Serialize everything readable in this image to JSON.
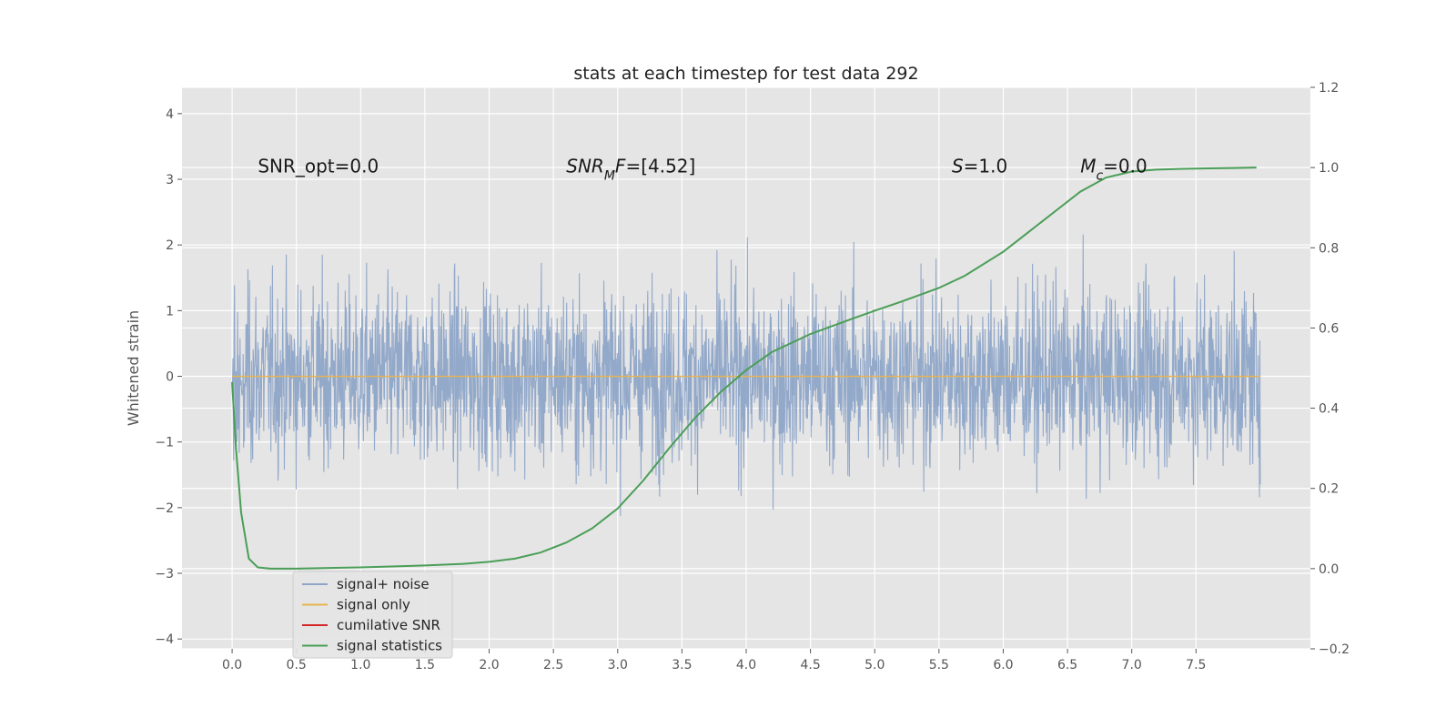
{
  "chart_data": {
    "type": "line",
    "title": "stats at each timestep for test data 292",
    "ylabel": "Whitened strain",
    "xlabel": "",
    "xlim": [
      -0.39,
      8.39
    ],
    "ylim": [
      -4.15,
      4.4
    ],
    "y2lim": [
      -0.2,
      1.2
    ],
    "x_ticks": [
      "0.0",
      "0.5",
      "1.0",
      "1.5",
      "2.0",
      "2.5",
      "3.0",
      "3.5",
      "4.0",
      "4.5",
      "5.0",
      "5.5",
      "6.0",
      "6.5",
      "7.0",
      "7.5"
    ],
    "y_ticks": [
      "−4",
      "−3",
      "−2",
      "−1",
      "0",
      "1",
      "2",
      "3",
      "4"
    ],
    "y2_ticks": [
      "−0.2",
      "0.0",
      "0.2",
      "0.4",
      "0.6",
      "0.8",
      "1.0",
      "1.2"
    ],
    "grid": true,
    "legend_position": "lower-left",
    "annotations": [
      {
        "text": "SNR_opt=0.0",
        "x": 0.2,
        "y": 3.2
      },
      {
        "text_parts": [
          {
            "t": "SNR",
            "italic": true
          },
          {
            "t": "M",
            "italic": true,
            "sub": true
          },
          {
            "t": "F",
            "italic": true
          },
          {
            "t": "=[4.52]",
            "italic": false
          }
        ],
        "x": 2.6,
        "y": 3.2
      },
      {
        "text_parts": [
          {
            "t": "S",
            "italic": true
          },
          {
            "t": "=1.0",
            "italic": false
          }
        ],
        "x": 5.6,
        "y": 3.2
      },
      {
        "text_parts": [
          {
            "t": "M",
            "italic": true
          },
          {
            "t": "c",
            "italic": true,
            "sub": true
          },
          {
            "t": "=0.0",
            "italic": false
          }
        ],
        "x": 6.6,
        "y": 3.2
      }
    ],
    "series": [
      {
        "name": "signal+ noise",
        "color": "#8ea5c8",
        "kind": "noise",
        "x_range": [
          0,
          8.0
        ],
        "envelope": [
          1.9,
          -1.8
        ]
      },
      {
        "name": "signal only",
        "color": "#e8b44e",
        "kind": "flat",
        "x": [
          0,
          8.0
        ],
        "y": [
          0,
          0
        ]
      },
      {
        "name": "cumilative SNR",
        "color": "#d62728",
        "kind": "none"
      },
      {
        "name": "signal statistics",
        "color": "#4a9e57",
        "axis": "right",
        "x": [
          0.0,
          0.03,
          0.07,
          0.13,
          0.2,
          0.3,
          0.5,
          0.8,
          1.0,
          1.3,
          1.5,
          1.8,
          2.0,
          2.2,
          2.4,
          2.6,
          2.8,
          3.0,
          3.2,
          3.4,
          3.6,
          3.8,
          4.0,
          4.2,
          4.5,
          4.8,
          5.0,
          5.2,
          5.5,
          5.7,
          6.0,
          6.2,
          6.4,
          6.6,
          6.8,
          7.0,
          7.2,
          7.4,
          7.6,
          7.8,
          7.97
        ],
        "y": [
          0.465,
          0.3,
          0.14,
          0.025,
          0.003,
          0.0,
          0.0,
          0.002,
          0.003,
          0.006,
          0.008,
          0.012,
          0.017,
          0.025,
          0.04,
          0.065,
          0.1,
          0.15,
          0.22,
          0.3,
          0.375,
          0.44,
          0.495,
          0.54,
          0.585,
          0.62,
          0.643,
          0.665,
          0.7,
          0.73,
          0.79,
          0.84,
          0.89,
          0.94,
          0.975,
          0.99,
          0.995,
          0.997,
          0.998,
          0.999,
          1.0
        ]
      }
    ]
  }
}
